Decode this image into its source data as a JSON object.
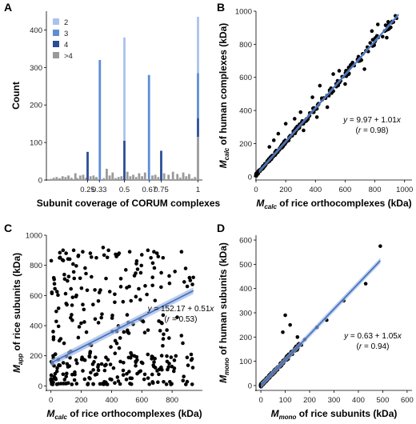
{
  "panels": [
    "A",
    "B",
    "C",
    "D"
  ],
  "chart_data": [
    {
      "panel": "A",
      "type": "bar",
      "xlabel": "Subunit coverage of CORUM complexes",
      "ylabel": "Count",
      "xlim": [
        -0.03,
        1.03
      ],
      "ylim": [
        0,
        450
      ],
      "x_ticks": [
        0.25,
        0.33,
        0.5,
        0.67,
        0.75,
        1
      ],
      "x_tick_labels": [
        "0.25",
        "0.33",
        "0.5",
        "0.67",
        "0.75",
        "1"
      ],
      "y_ticks": [
        0,
        100,
        200,
        300,
        400
      ],
      "legend": {
        "placement": "top-left",
        "entries": [
          {
            "name": "2",
            "color": "#aac3ea"
          },
          {
            "name": "3",
            "color": "#5c8ed6"
          },
          {
            "name": "4",
            "color": "#2b4f97"
          },
          {
            "name": ">4",
            "color": "#9a9a9a"
          }
        ]
      },
      "stacked_bars": [
        {
          "x": 0.25,
          "segments": [
            {
              "series": "4",
              "value": 75
            }
          ]
        },
        {
          "x": 0.333,
          "segments": [
            {
              "series": "3",
              "value": 320
            }
          ]
        },
        {
          "x": 0.5,
          "segments": [
            {
              "series": "4",
              "value": 105
            },
            {
              "series": "2",
              "value": 275
            }
          ]
        },
        {
          "x": 0.667,
          "segments": [
            {
              "series": "3",
              "value": 280
            }
          ]
        },
        {
          "x": 0.75,
          "segments": [
            {
              "series": "4",
              "value": 78
            }
          ]
        },
        {
          "x": 1.0,
          "segments": [
            {
              "series": ">4",
              "value": 115
            },
            {
              "series": "4",
              "value": 50
            },
            {
              "series": "3",
              "value": 120
            },
            {
              "series": "2",
              "value": 150
            }
          ]
        }
      ],
      "gray_bars": {
        "series": ">4",
        "x": [
          0.0,
          0.02,
          0.04,
          0.06,
          0.08,
          0.1,
          0.12,
          0.14,
          0.167,
          0.18,
          0.2,
          0.22,
          0.24,
          0.27,
          0.29,
          0.3,
          0.31,
          0.36,
          0.38,
          0.4,
          0.42,
          0.44,
          0.46,
          0.48,
          0.52,
          0.54,
          0.56,
          0.58,
          0.6,
          0.62,
          0.64,
          0.69,
          0.71,
          0.73,
          0.77,
          0.8,
          0.83,
          0.86,
          0.88,
          0.9,
          0.92,
          0.94,
          0.96,
          0.98
        ],
        "values": [
          3,
          6,
          8,
          5,
          10,
          8,
          12,
          6,
          18,
          5,
          12,
          14,
          6,
          10,
          12,
          4,
          8,
          5,
          30,
          12,
          20,
          5,
          8,
          10,
          22,
          10,
          14,
          8,
          18,
          10,
          20,
          12,
          14,
          8,
          18,
          14,
          22,
          16,
          6,
          20,
          10,
          16,
          4,
          8
        ]
      }
    },
    {
      "panel": "B",
      "type": "scatter",
      "xlabel_main": "M",
      "xlabel_sub": "calc",
      "xlabel_rest": " of rice orthocomplexes (kDa)",
      "ylabel_main": "M",
      "ylabel_sub": "calc",
      "ylabel_rest": " of human complexes (kDa)",
      "xlim": [
        0,
        1050
      ],
      "ylim": [
        -20,
        1000
      ],
      "x_ticks": [
        0,
        200,
        400,
        600,
        800,
        1000
      ],
      "y_ticks": [
        0,
        200,
        400,
        600,
        800,
        1000
      ],
      "fit": {
        "intercept": 9.97,
        "slope": 1.01
      },
      "annotation_y": "y",
      "annotation_eq": " = 9.97 + 1.01",
      "annotation_x": "x",
      "annotation_r_open": "(",
      "annotation_r": "r",
      "annotation_r_value": " = 0.98)",
      "spread": 25,
      "extra_points": [
        {
          "x": 820,
          "y": 920
        },
        {
          "x": 780,
          "y": 880
        },
        {
          "x": 650,
          "y": 690
        },
        {
          "x": 520,
          "y": 620
        },
        {
          "x": 430,
          "y": 550
        },
        {
          "x": 380,
          "y": 480
        },
        {
          "x": 300,
          "y": 390
        },
        {
          "x": 260,
          "y": 350
        },
        {
          "x": 700,
          "y": 700
        },
        {
          "x": 880,
          "y": 840
        },
        {
          "x": 150,
          "y": 260
        },
        {
          "x": 200,
          "y": 320
        },
        {
          "x": 480,
          "y": 420
        },
        {
          "x": 600,
          "y": 560
        },
        {
          "x": 90,
          "y": 180
        },
        {
          "x": 320,
          "y": 280
        },
        {
          "x": 730,
          "y": 650
        },
        {
          "x": 560,
          "y": 640
        },
        {
          "x": 120,
          "y": 220
        },
        {
          "x": 410,
          "y": 360
        }
      ]
    },
    {
      "panel": "C",
      "type": "scatter",
      "xlabel_main": "M",
      "xlabel_sub": "calc",
      "xlabel_rest": " of rice orthocomplexes (kDa)",
      "ylabel_main": "M",
      "ylabel_sub": "app",
      "ylabel_rest": " of rice subunits (kDa)",
      "xlim": [
        -30,
        1000
      ],
      "ylim": [
        -30,
        1000
      ],
      "x_ticks": [
        0,
        200,
        400,
        600,
        800
      ],
      "y_ticks": [
        0,
        200,
        400,
        600,
        800,
        1000
      ],
      "fit": {
        "intercept": 152.17,
        "slope": 0.51
      },
      "annotation_y": "y",
      "annotation_eq": " = 152.17 + 0.51",
      "annotation_x": "x",
      "annotation_r_open": "(",
      "annotation_r": "r",
      "annotation_r_value": " = 0.53)",
      "extra_points": [
        {
          "x": 80,
          "y": 900
        },
        {
          "x": 100,
          "y": 880
        },
        {
          "x": 150,
          "y": 900
        },
        {
          "x": 180,
          "y": 860
        },
        {
          "x": 210,
          "y": 890
        },
        {
          "x": 260,
          "y": 880
        },
        {
          "x": 300,
          "y": 850
        },
        {
          "x": 380,
          "y": 900
        },
        {
          "x": 450,
          "y": 880
        },
        {
          "x": 520,
          "y": 890
        },
        {
          "x": 600,
          "y": 870
        },
        {
          "x": 640,
          "y": 900
        },
        {
          "x": 660,
          "y": 850
        },
        {
          "x": 680,
          "y": 890
        },
        {
          "x": 700,
          "y": 880
        },
        {
          "x": 740,
          "y": 850
        },
        {
          "x": 880,
          "y": 690
        },
        {
          "x": 920,
          "y": 700
        },
        {
          "x": 900,
          "y": 660
        },
        {
          "x": 940,
          "y": 720
        }
      ]
    },
    {
      "panel": "D",
      "type": "scatter",
      "xlabel_main": "M",
      "xlabel_sub": "mono",
      "xlabel_rest": " of rice subunits (kDa)",
      "ylabel_main": "M",
      "ylabel_sub": "mono",
      "ylabel_rest": " of human subunits (kDa)",
      "xlim": [
        -20,
        620
      ],
      "ylim": [
        -20,
        620
      ],
      "x_ticks": [
        0,
        100,
        200,
        300,
        400,
        500,
        600
      ],
      "y_ticks": [
        0,
        100,
        200,
        300,
        400,
        500,
        600
      ],
      "fit": {
        "intercept": 0.63,
        "slope": 1.05
      },
      "annotation_y": "y",
      "annotation_eq": " = 0.63 + 1.05",
      "annotation_x": "x",
      "annotation_r_open": "(",
      "annotation_r": "r",
      "annotation_r_value": " = 0.94)",
      "spread": 18,
      "extra_points": [
        {
          "x": 490,
          "y": 575
        },
        {
          "x": 430,
          "y": 420
        },
        {
          "x": 340,
          "y": 350
        },
        {
          "x": 270,
          "y": 270
        },
        {
          "x": 230,
          "y": 240
        },
        {
          "x": 180,
          "y": 190
        },
        {
          "x": 100,
          "y": 290
        },
        {
          "x": 120,
          "y": 250
        },
        {
          "x": 150,
          "y": 200
        },
        {
          "x": 90,
          "y": 220
        }
      ]
    }
  ]
}
